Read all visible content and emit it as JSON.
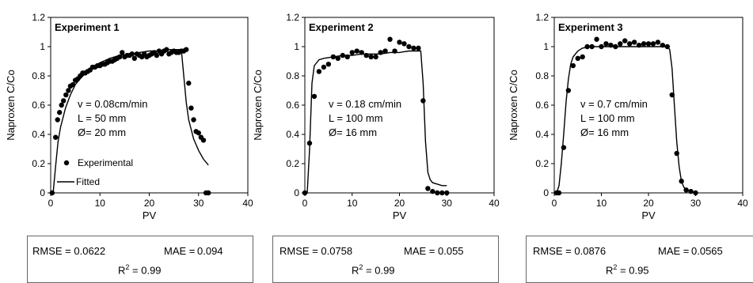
{
  "chart_data": [
    {
      "type": "scatter",
      "title": "Experiment 1",
      "xlabel": "PV",
      "ylabel": "Naproxen C/Co",
      "xlim": [
        0,
        40
      ],
      "ylim": [
        0,
        1.2
      ],
      "xticks": [
        "0",
        "10",
        "20",
        "30",
        "40"
      ],
      "yticks": [
        "0",
        "0.2",
        "0.4",
        "0.6",
        "0.8",
        "1",
        "1.2"
      ],
      "grid": false,
      "legend": {
        "position": "lower-left",
        "entries": [
          "Experimental",
          "Fitted"
        ]
      },
      "annotations": [
        "v = 0.08cm/min",
        "L = 50 mm",
        "Ø= 20 mm"
      ],
      "series": [
        {
          "name": "Experimental",
          "kind": "points",
          "x": [
            0.3,
            1.0,
            1.4,
            1.8,
            2.2,
            2.6,
            3.1,
            3.6,
            4.0,
            4.5,
            5.0,
            5.5,
            6.0,
            6.5,
            7.0,
            7.5,
            8.0,
            8.5,
            9.0,
            9.5,
            10.0,
            10.5,
            11.0,
            11.5,
            12.0,
            12.5,
            13.0,
            13.5,
            14.0,
            14.5,
            15.0,
            15.5,
            16.0,
            16.5,
            17.0,
            17.5,
            18.0,
            18.5,
            19.0,
            19.5,
            20.0,
            20.5,
            21.0,
            21.5,
            22.0,
            22.5,
            23.0,
            23.5,
            24.0,
            24.5,
            25.0,
            25.5,
            26.0,
            26.5,
            27.0,
            27.5,
            28.0,
            28.5,
            29.0,
            29.5,
            30.0,
            30.5,
            31.0,
            31.5,
            32.0
          ],
          "y": [
            0,
            0.38,
            0.5,
            0.55,
            0.6,
            0.63,
            0.67,
            0.7,
            0.73,
            0.74,
            0.77,
            0.78,
            0.8,
            0.82,
            0.82,
            0.83,
            0.84,
            0.86,
            0.86,
            0.87,
            0.87,
            0.88,
            0.88,
            0.89,
            0.9,
            0.9,
            0.91,
            0.92,
            0.93,
            0.96,
            0.93,
            0.94,
            0.94,
            0.95,
            0.92,
            0.95,
            0.94,
            0.93,
            0.95,
            0.93,
            0.94,
            0.95,
            0.96,
            0.94,
            0.97,
            0.95,
            0.97,
            0.98,
            0.95,
            0.96,
            0.97,
            0.96,
            0.96,
            0.97,
            0.97,
            0.98,
            0.75,
            0.58,
            0.5,
            0.42,
            0.41,
            0.38,
            0.36,
            0,
            0
          ]
        },
        {
          "name": "Fitted",
          "kind": "line",
          "x": [
            0,
            0.5,
            1,
            1.5,
            2,
            3,
            4,
            5,
            6,
            8,
            10,
            12,
            14,
            16,
            18,
            20,
            22,
            24,
            25,
            26,
            26.5,
            27,
            27.5,
            28,
            29,
            30,
            31,
            32
          ],
          "y": [
            0,
            0,
            0.18,
            0.35,
            0.45,
            0.58,
            0.67,
            0.74,
            0.78,
            0.85,
            0.89,
            0.92,
            0.94,
            0.95,
            0.96,
            0.97,
            0.97,
            0.98,
            0.98,
            0.98,
            0.98,
            0.8,
            0.62,
            0.5,
            0.37,
            0.29,
            0.23,
            0.19
          ]
        }
      ],
      "stats": {
        "rmse_label": "RMSE = 0.0622",
        "mae_prefix": "MAE =",
        "mae_value": "0.094",
        "r2_prefix": "R",
        "r2_sup": "2",
        "r2_value": "= 0.99"
      }
    },
    {
      "type": "scatter",
      "title": "Experiment 2",
      "xlabel": "PV",
      "ylabel": "Naproxen C/Co",
      "xlim": [
        0,
        40
      ],
      "ylim": [
        0,
        1.2
      ],
      "xticks": [
        "0",
        "10",
        "20",
        "30",
        "40"
      ],
      "yticks": [
        "0",
        "0.2",
        "0.4",
        "0.6",
        "0.8",
        "1",
        "1.2"
      ],
      "grid": false,
      "annotations": [
        "v = 0.18 cm/min",
        "L = 100 mm",
        "Ø= 16 mm"
      ],
      "series": [
        {
          "name": "Experimental",
          "kind": "points",
          "x": [
            0,
            1.0,
            2.0,
            3.0,
            4.0,
            5.0,
            6.0,
            7.0,
            8.0,
            9.0,
            10.0,
            11.0,
            12.0,
            13.0,
            14.0,
            15.0,
            16.0,
            17.0,
            18.0,
            19.0,
            20.0,
            21.0,
            22.0,
            23.0,
            24.0,
            25.0,
            26.0,
            27.0,
            28.0,
            29.0,
            30.0
          ],
          "y": [
            0,
            0.34,
            0.66,
            0.83,
            0.86,
            0.88,
            0.93,
            0.92,
            0.94,
            0.93,
            0.96,
            0.97,
            0.96,
            0.94,
            0.93,
            0.93,
            0.96,
            0.97,
            1.05,
            0.97,
            1.03,
            1.02,
            1.0,
            0.99,
            0.99,
            0.63,
            0.03,
            0.01,
            0,
            0,
            0
          ]
        },
        {
          "name": "Fitted",
          "kind": "line",
          "x": [
            0,
            0.5,
            1,
            1.5,
            2,
            3,
            4,
            6,
            8,
            10,
            12,
            14,
            16,
            18,
            20,
            22,
            24,
            24.5,
            25,
            25.5,
            26,
            26.5,
            27,
            28,
            29,
            30
          ],
          "y": [
            0,
            0,
            0.3,
            0.75,
            0.87,
            0.91,
            0.92,
            0.93,
            0.94,
            0.94,
            0.95,
            0.95,
            0.95,
            0.96,
            0.96,
            0.97,
            0.97,
            0.97,
            0.75,
            0.35,
            0.14,
            0.09,
            0.07,
            0.06,
            0.05,
            0.05
          ]
        }
      ],
      "stats": {
        "rmse_label": "RMSE = 0.0758",
        "mae_prefix": "MAE =",
        "mae_value": "0.055",
        "r2_prefix": "R",
        "r2_sup": "2",
        "r2_value": "= 0.99"
      }
    },
    {
      "type": "scatter",
      "title": "Experiment 3",
      "xlabel": "PV",
      "ylabel": "Naproxen C/Co",
      "xlim": [
        0,
        40
      ],
      "ylim": [
        0,
        1.2
      ],
      "xticks": [
        "0",
        "10",
        "20",
        "30",
        "40"
      ],
      "yticks": [
        "0",
        "0.2",
        "0.4",
        "0.6",
        "0.8",
        "1",
        "1.2"
      ],
      "grid": false,
      "annotations": [
        "v = 0.7 cm/min",
        "L = 100 mm",
        "Ø= 16 mm"
      ],
      "series": [
        {
          "name": "Experimental",
          "kind": "points",
          "x": [
            0.5,
            1.0,
            2.0,
            3.0,
            4.0,
            5.0,
            6.0,
            7.0,
            8.0,
            9.0,
            10.0,
            11.0,
            12.0,
            13.0,
            14.0,
            15.0,
            16.0,
            17.0,
            18.0,
            19.0,
            20.0,
            21.0,
            22.0,
            23.0,
            24.0,
            25.0,
            26.0,
            27.0,
            28.0,
            29.0,
            30.0
          ],
          "y": [
            0,
            0,
            0.31,
            0.7,
            0.87,
            0.92,
            0.93,
            1.0,
            1.0,
            1.05,
            1.0,
            1.02,
            1.01,
            1.0,
            1.02,
            1.04,
            1.02,
            1.03,
            1.01,
            1.02,
            1.02,
            1.02,
            1.03,
            1.01,
            1.0,
            0.67,
            0.27,
            0.08,
            0.02,
            0.01,
            0
          ]
        },
        {
          "name": "Fitted",
          "kind": "line",
          "x": [
            0,
            0.5,
            1,
            1.5,
            2,
            2.5,
            3,
            3.5,
            4,
            5,
            6,
            8,
            10,
            15,
            20,
            24,
            24.5,
            25,
            25.5,
            26,
            26.5,
            27,
            27.5,
            28,
            29,
            30
          ],
          "y": [
            0,
            0,
            0.05,
            0.2,
            0.4,
            0.62,
            0.78,
            0.88,
            0.93,
            0.97,
            0.99,
            1.0,
            1.0,
            1.0,
            1.0,
            1.0,
            0.98,
            0.85,
            0.6,
            0.35,
            0.18,
            0.08,
            0.04,
            0.02,
            0.01,
            0
          ]
        }
      ],
      "stats": {
        "rmse_label": "RMSE = 0.0876",
        "mae_prefix": "MAE =",
        "mae_value": "0.0565",
        "r2_prefix": "R",
        "r2_sup": "2",
        "r2_value": "= 0.95"
      }
    }
  ]
}
